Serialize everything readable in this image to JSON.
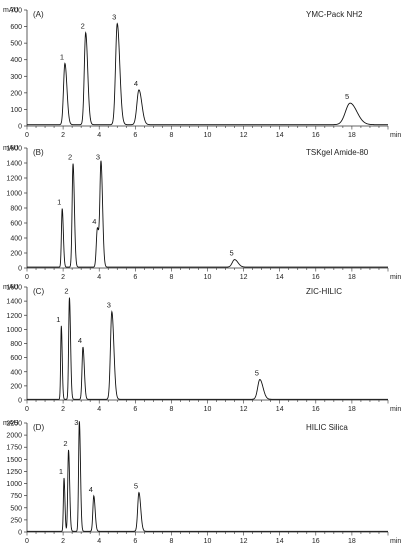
{
  "chart_data": [
    {
      "type": "line",
      "panel_label": "(A)",
      "column": "YMC-Pack NH2",
      "yunit": "mAU",
      "xunit": "min",
      "xlim": [
        0,
        20
      ],
      "ylim": [
        0,
        700
      ],
      "yticks": [
        0,
        100,
        200,
        300,
        400,
        500,
        600,
        700
      ],
      "xticks": [
        0,
        2,
        4,
        6,
        8,
        10,
        12,
        14,
        16,
        18
      ],
      "baseline": 8,
      "peaks": [
        {
          "label": "1",
          "rt": 2.1,
          "height": 370,
          "width": 0.09
        },
        {
          "label": "2",
          "rt": 3.25,
          "height": 555,
          "width": 0.09
        },
        {
          "label": "3",
          "rt": 5.0,
          "height": 610,
          "width": 0.11
        },
        {
          "label": "4",
          "rt": 6.2,
          "height": 210,
          "width": 0.13
        },
        {
          "label": "5",
          "rt": 17.9,
          "height": 130,
          "width": 0.3
        }
      ]
    },
    {
      "type": "line",
      "panel_label": "(B)",
      "column": "TSKgel Amide-80",
      "yunit": "mAU",
      "xunit": "min",
      "xlim": [
        0,
        20
      ],
      "ylim": [
        0,
        1600
      ],
      "yticks": [
        0,
        200,
        400,
        600,
        800,
        1000,
        1200,
        1400,
        1600
      ],
      "xticks": [
        0,
        2,
        4,
        6,
        8,
        10,
        12,
        14,
        16,
        18
      ],
      "baseline": 12,
      "peaks": [
        {
          "label": "1",
          "rt": 1.95,
          "height": 780,
          "width": 0.05
        },
        {
          "label": "2",
          "rt": 2.55,
          "height": 1380,
          "width": 0.06
        },
        {
          "label": "4",
          "rt": 3.9,
          "height": 520,
          "width": 0.07
        },
        {
          "label": "3",
          "rt": 4.1,
          "height": 1380,
          "width": 0.07
        },
        {
          "label": "5",
          "rt": 11.5,
          "height": 100,
          "width": 0.15
        }
      ]
    },
    {
      "type": "line",
      "panel_label": "(C)",
      "column": "ZIC-HILIC",
      "yunit": "mAU",
      "xunit": "min",
      "xlim": [
        0,
        20
      ],
      "ylim": [
        0,
        1600
      ],
      "yticks": [
        0,
        200,
        400,
        600,
        800,
        1000,
        1200,
        1400,
        1600
      ],
      "xticks": [
        0,
        2,
        4,
        6,
        8,
        10,
        12,
        14,
        16,
        18
      ],
      "baseline": 10,
      "peaks": [
        {
          "label": "1",
          "rt": 1.9,
          "height": 1040,
          "width": 0.04
        },
        {
          "label": "2",
          "rt": 2.35,
          "height": 1440,
          "width": 0.05
        },
        {
          "label": "4",
          "rt": 3.1,
          "height": 740,
          "width": 0.06
        },
        {
          "label": "3",
          "rt": 4.7,
          "height": 1240,
          "width": 0.09
        },
        {
          "label": "5",
          "rt": 12.9,
          "height": 280,
          "width": 0.14
        }
      ]
    },
    {
      "type": "line",
      "panel_label": "(D)",
      "column": "HILIC Silica",
      "yunit": "mAU",
      "xunit": "min",
      "xlim": [
        0,
        20
      ],
      "ylim": [
        0,
        2250
      ],
      "yticks": [
        0,
        250,
        500,
        750,
        1000,
        1250,
        1500,
        1750,
        2000,
        2250
      ],
      "xticks": [
        0,
        2,
        4,
        6,
        8,
        10,
        12,
        14,
        16,
        18
      ],
      "baseline": 15,
      "peaks": [
        {
          "label": "1",
          "rt": 2.05,
          "height": 1100,
          "width": 0.04
        },
        {
          "label": "2",
          "rt": 2.3,
          "height": 1680,
          "width": 0.05
        },
        {
          "label": "3",
          "rt": 2.9,
          "height": 2270,
          "width": 0.05
        },
        {
          "label": "4",
          "rt": 3.7,
          "height": 730,
          "width": 0.06
        },
        {
          "label": "5",
          "rt": 6.2,
          "height": 800,
          "width": 0.08
        }
      ]
    }
  ]
}
